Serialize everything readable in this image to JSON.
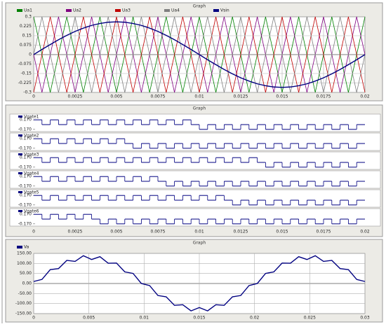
{
  "chart_data": [
    {
      "type": "line",
      "title": "Graph",
      "x": [
        0,
        0.0005,
        0.001,
        0.0015,
        0.002,
        0.0025,
        0.003,
        0.0035,
        0.004,
        0.0045,
        0.005,
        0.0055,
        0.006,
        0.0065,
        0.007,
        0.0075,
        0.008,
        0.0085,
        0.009,
        0.0095,
        0.01,
        0.0105,
        0.011,
        0.0115,
        0.012,
        0.0125,
        0.013,
        0.0135,
        0.014,
        0.0145,
        0.015,
        0.0155,
        0.016,
        0.0165,
        0.017,
        0.0175,
        0.018,
        0.0185,
        0.019,
        0.0195,
        0.02
      ],
      "series": [
        {
          "name": "Ua1",
          "color": "#008000",
          "values": [
            0.3,
            0,
            -0.3,
            0,
            0.3,
            0,
            -0.3,
            0,
            0.3,
            0,
            -0.3,
            0,
            0.3,
            0,
            -0.3,
            0,
            0.3,
            0,
            -0.3,
            0,
            0.3,
            0,
            -0.3,
            0,
            0.3,
            0,
            -0.3,
            0,
            0.3,
            0,
            -0.3,
            0,
            0.3,
            0,
            -0.3,
            0,
            0.3,
            0,
            -0.3,
            0,
            0.3
          ]
        },
        {
          "name": "Ua2",
          "color": "#800080",
          "values": [
            0,
            -0.3,
            0,
            0.3,
            0,
            -0.3,
            0,
            0.3,
            0,
            -0.3,
            0,
            0.3,
            0,
            -0.3,
            0,
            0.3,
            0,
            -0.3,
            0,
            0.3,
            0,
            -0.3,
            0,
            0.3,
            0,
            -0.3,
            0,
            0.3,
            0,
            -0.3,
            0,
            0.3,
            0,
            -0.3,
            0,
            0.3,
            0,
            -0.3,
            0,
            0.3,
            0
          ]
        },
        {
          "name": "Ua3",
          "color": "#c00000",
          "values": [
            -0.3,
            0,
            0.3,
            0,
            -0.3,
            0,
            0.3,
            0,
            -0.3,
            0,
            0.3,
            0,
            -0.3,
            0,
            0.3,
            0,
            -0.3,
            0,
            0.3,
            0,
            -0.3,
            0,
            0.3,
            0,
            -0.3,
            0,
            0.3,
            0,
            -0.3,
            0,
            0.3,
            0,
            -0.3,
            0,
            0.3,
            0,
            -0.3,
            0,
            0.3,
            0,
            -0.3
          ]
        },
        {
          "name": "Ua4",
          "color": "#808080",
          "values": [
            0,
            0.3,
            0,
            -0.3,
            0,
            0.3,
            0,
            -0.3,
            0,
            0.3,
            0,
            -0.3,
            0,
            0.3,
            0,
            -0.3,
            0,
            0.3,
            0,
            -0.3,
            0,
            0.3,
            0,
            -0.3,
            0,
            0.3,
            0,
            -0.3,
            0,
            0.3,
            0,
            -0.3,
            0,
            0.3,
            0,
            -0.3,
            0,
            0.3,
            0,
            -0.3,
            0
          ]
        },
        {
          "name": "Vsin",
          "color": "#000080",
          "values": [
            0,
            0.041,
            0.08,
            0.118,
            0.153,
            0.184,
            0.21,
            0.232,
            0.247,
            0.257,
            0.26,
            0.257,
            0.247,
            0.232,
            0.21,
            0.184,
            0.153,
            0.118,
            0.08,
            0.041,
            0,
            -0.041,
            -0.08,
            -0.118,
            -0.153,
            -0.184,
            -0.21,
            -0.232,
            -0.247,
            -0.257,
            -0.26,
            -0.257,
            -0.247,
            -0.232,
            -0.21,
            -0.184,
            -0.153,
            -0.118,
            -0.08,
            -0.041,
            0
          ]
        }
      ],
      "xlim": [
        0,
        0.02
      ],
      "xticks": [
        0,
        0.0025,
        0.005,
        0.0075,
        0.01,
        0.0125,
        0.015,
        0.0175,
        0.02
      ],
      "ylim": [
        -0.3,
        0.3
      ],
      "yticks": [
        -0.3,
        -0.225,
        -0.15,
        -0.075,
        0,
        0.075,
        0.15,
        0.225,
        0.3
      ],
      "grid": true
    },
    {
      "type": "step",
      "title": "Graph",
      "x": [
        0,
        0.0005,
        0.001,
        0.0015,
        0.002,
        0.0025,
        0.003,
        0.0035,
        0.004,
        0.0045,
        0.005,
        0.0055,
        0.006,
        0.0065,
        0.007,
        0.0075,
        0.008,
        0.0085,
        0.009,
        0.0095,
        0.01,
        0.0105,
        0.011,
        0.0115,
        0.012,
        0.0125,
        0.013,
        0.0135,
        0.014,
        0.0145,
        0.015,
        0.0155,
        0.016,
        0.0165,
        0.017,
        0.0175,
        0.018,
        0.0185,
        0.019,
        0.0195
      ],
      "series": [
        {
          "name": "Vgate1",
          "color": "#000080",
          "values": [
            0.17,
            0,
            0.17,
            0,
            0.17,
            0,
            0.17,
            0,
            0.17,
            0,
            0.17,
            0,
            0.17,
            0,
            0.17,
            0,
            0.17,
            0,
            0.17,
            0,
            -0.17,
            0,
            -0.17,
            0,
            -0.17,
            0,
            -0.17,
            0,
            -0.17,
            0,
            -0.17,
            0,
            -0.17,
            0,
            -0.17,
            0,
            -0.17,
            0,
            -0.17,
            0
          ]
        },
        {
          "name": "Vgate2",
          "color": "#000080",
          "values": [
            0.17,
            0,
            0.17,
            0,
            0.17,
            0,
            0.17,
            0,
            0.17,
            0,
            0.17,
            0,
            -0.17,
            0,
            -0.17,
            0,
            -0.17,
            0,
            -0.17,
            0,
            -0.17,
            0,
            -0.17,
            0,
            -0.17,
            0,
            -0.17,
            0,
            -0.17,
            0,
            -0.17,
            0,
            -0.17,
            0,
            -0.17,
            0,
            -0.17,
            0,
            -0.17,
            0
          ]
        },
        {
          "name": "Vgate3",
          "color": "#000080",
          "values": [
            0.17,
            0,
            0.17,
            0,
            0.17,
            0,
            0.17,
            0,
            0.17,
            0,
            0.17,
            0,
            0.17,
            0,
            0.17,
            0,
            0.17,
            0,
            0.17,
            0,
            0.17,
            0,
            0.17,
            0,
            0.17,
            0,
            0.17,
            0,
            -0.17,
            0,
            -0.17,
            0,
            -0.17,
            0,
            -0.17,
            0,
            -0.17,
            0,
            -0.17,
            0
          ]
        },
        {
          "name": "Vgate4",
          "color": "#000080",
          "values": [
            0.17,
            0,
            0.17,
            0,
            0.17,
            0,
            0.17,
            0,
            0.17,
            0,
            0.17,
            0,
            0.17,
            0,
            0.17,
            0,
            -0.17,
            0,
            -0.17,
            0,
            -0.17,
            0,
            -0.17,
            0,
            -0.17,
            0,
            -0.17,
            0,
            -0.17,
            0,
            -0.17,
            0,
            -0.17,
            0,
            -0.17,
            0,
            -0.17,
            0,
            -0.17,
            0
          ]
        },
        {
          "name": "Vgate5",
          "color": "#000080",
          "values": [
            0.17,
            0,
            0.17,
            0,
            0.17,
            0,
            0.17,
            0,
            0.17,
            0,
            0.17,
            0,
            0.17,
            0,
            0.17,
            0,
            0.17,
            0,
            0.17,
            0,
            0.17,
            0,
            0.17,
            0,
            -0.17,
            0,
            -0.17,
            0,
            -0.17,
            0,
            -0.17,
            0,
            -0.17,
            0,
            -0.17,
            0,
            -0.17,
            0,
            -0.17,
            0
          ]
        },
        {
          "name": "Vgate6",
          "color": "#000080",
          "values": [
            0.17,
            0,
            0.17,
            0,
            0.17,
            0,
            0.17,
            0,
            -0.17,
            0,
            -0.17,
            0,
            -0.17,
            0,
            -0.17,
            0,
            -0.17,
            0,
            -0.17,
            0,
            -0.17,
            0,
            -0.17,
            0,
            -0.17,
            0,
            -0.17,
            0,
            -0.17,
            0,
            -0.17,
            0,
            -0.17,
            0,
            -0.17,
            0,
            -0.17,
            0,
            -0.17,
            0
          ]
        }
      ],
      "xlim": [
        0,
        0.02
      ],
      "xticks": [
        0,
        0.0025,
        0.005,
        0.0075,
        0.01,
        0.0125,
        0.015,
        0.0175,
        0.02
      ],
      "ylim": [
        -0.2,
        0.2
      ],
      "yticks": [
        {
          "value": 0.17,
          "label": "0.170"
        },
        {
          "value": -0.17,
          "label": "-0.170"
        }
      ]
    },
    {
      "type": "line",
      "title": "Graph",
      "x": [
        0,
        0.00075,
        0.0015,
        0.00225,
        0.003,
        0.00375,
        0.0045,
        0.00525,
        0.006,
        0.00675,
        0.0075,
        0.00825,
        0.009,
        0.00975,
        0.0105,
        0.01125,
        0.012,
        0.01275,
        0.0135,
        0.01425,
        0.015,
        0.01575,
        0.0165,
        0.01725,
        0.018,
        0.01875,
        0.0195,
        0.02025,
        0.021,
        0.02175,
        0.0225,
        0.02325,
        0.024,
        0.02475,
        0.0255,
        0.02625,
        0.027,
        0.02775,
        0.0285,
        0.02925,
        0.03
      ],
      "series": [
        {
          "name": "Va",
          "color": "#000080",
          "values": [
            10,
            20.3,
            69,
            74.4,
            115.2,
            110.1,
            138.4,
            119.6,
            133.6,
            100.9,
            101.9,
            57.9,
            50.2,
            0.1,
            -10.3,
            -59.8,
            -66.4,
            -108.8,
            -105.8,
            -136.4,
            -120,
            -136.4,
            -105.8,
            -108.8,
            -66.4,
            -59.8,
            -10.3,
            0.1,
            50.2,
            57.9,
            101.9,
            100.9,
            133.6,
            119.6,
            138.4,
            110.1,
            115.2,
            74.4,
            69,
            20.3,
            10
          ]
        }
      ],
      "xlim": [
        0,
        0.03
      ],
      "xticks": [
        0,
        0.005,
        0.01,
        0.015,
        0.02,
        0.025,
        0.03
      ],
      "ylim": [
        -150,
        150
      ],
      "yticks": [
        {
          "value": -150,
          "label": "-150.00"
        },
        {
          "value": -100,
          "label": "-100.00"
        },
        {
          "value": -50,
          "label": "-50.00"
        },
        {
          "value": 0,
          "label": "0.00"
        },
        {
          "value": 50,
          "label": "50.00"
        },
        {
          "value": 100,
          "label": "100.00"
        },
        {
          "value": 150,
          "label": "150.00"
        }
      ],
      "grid": true
    }
  ]
}
